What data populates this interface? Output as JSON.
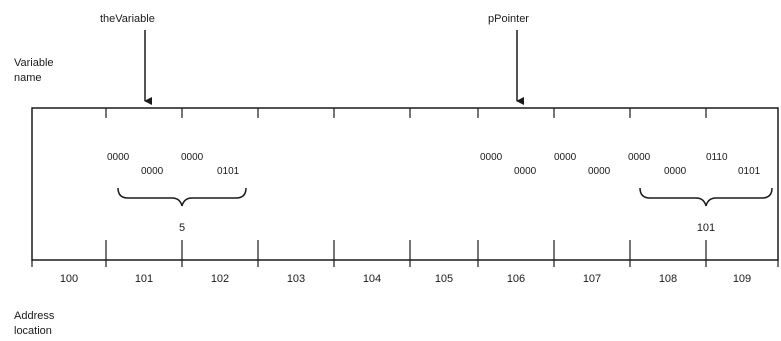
{
  "labels": {
    "variable_name": [
      "Variable",
      "name"
    ],
    "address_location": [
      "Address",
      "location"
    ]
  },
  "pointers": [
    {
      "name": "theVariable"
    },
    {
      "name": "pPointer"
    }
  ],
  "addresses": [
    "100",
    "101",
    "102",
    "103",
    "104",
    "105",
    "106",
    "107",
    "108",
    "109"
  ],
  "bit_groups": [
    {
      "top_left": "0000",
      "top_right": "0000",
      "bottom_left": "0000",
      "bottom_right": "0101",
      "value": "5"
    },
    {
      "top_left": "0000",
      "top_right": "0000",
      "bottom_left": "0000",
      "bottom_right": "0000",
      "value": ""
    },
    {
      "top_left": "0000",
      "top_right": "0110",
      "bottom_left": "0000",
      "bottom_right": "0101",
      "value": "101"
    }
  ]
}
